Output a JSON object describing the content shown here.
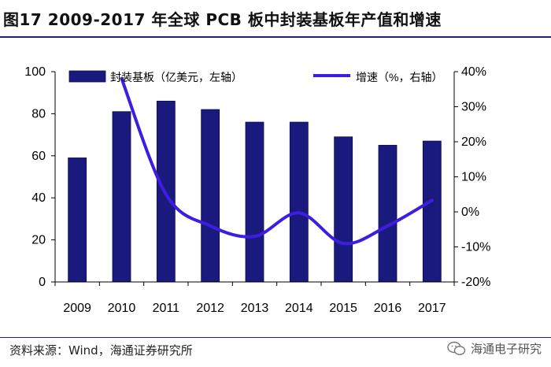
{
  "figure": {
    "title": "图17  2009-2017 年全球 PCB 板中封装基板年产值和增速",
    "source": "资料来源：Wind，海通证券研究所",
    "watermark": "海通电子研究"
  },
  "colors": {
    "bar": "#1a1a7e",
    "line": "#3d1de0",
    "axis": "#000000",
    "rule": "#1f1f7a"
  },
  "chart_data": {
    "type": "bar+line",
    "categories": [
      "2009",
      "2010",
      "2011",
      "2012",
      "2013",
      "2014",
      "2015",
      "2016",
      "2017"
    ],
    "series": [
      {
        "name": "封装基板（亿美元，左轴）",
        "kind": "bar",
        "axis": "left",
        "values": [
          59,
          81,
          86,
          82,
          76,
          76,
          69,
          65,
          67
        ]
      },
      {
        "name": "增速（%，右轴）",
        "kind": "line",
        "axis": "right",
        "values": [
          null,
          38,
          5,
          -4,
          -7,
          -0.3,
          -9,
          -4,
          3.3
        ]
      }
    ],
    "y_left": {
      "lim": [
        0,
        100
      ],
      "ticks": [
        "0",
        "20",
        "40",
        "60",
        "80",
        "100"
      ]
    },
    "y_right": {
      "lim": [
        -20,
        40
      ],
      "ticks": [
        "-20%",
        "-10%",
        "0%",
        "10%",
        "20%",
        "30%",
        "40%"
      ]
    },
    "grid": false,
    "legend": "top"
  }
}
